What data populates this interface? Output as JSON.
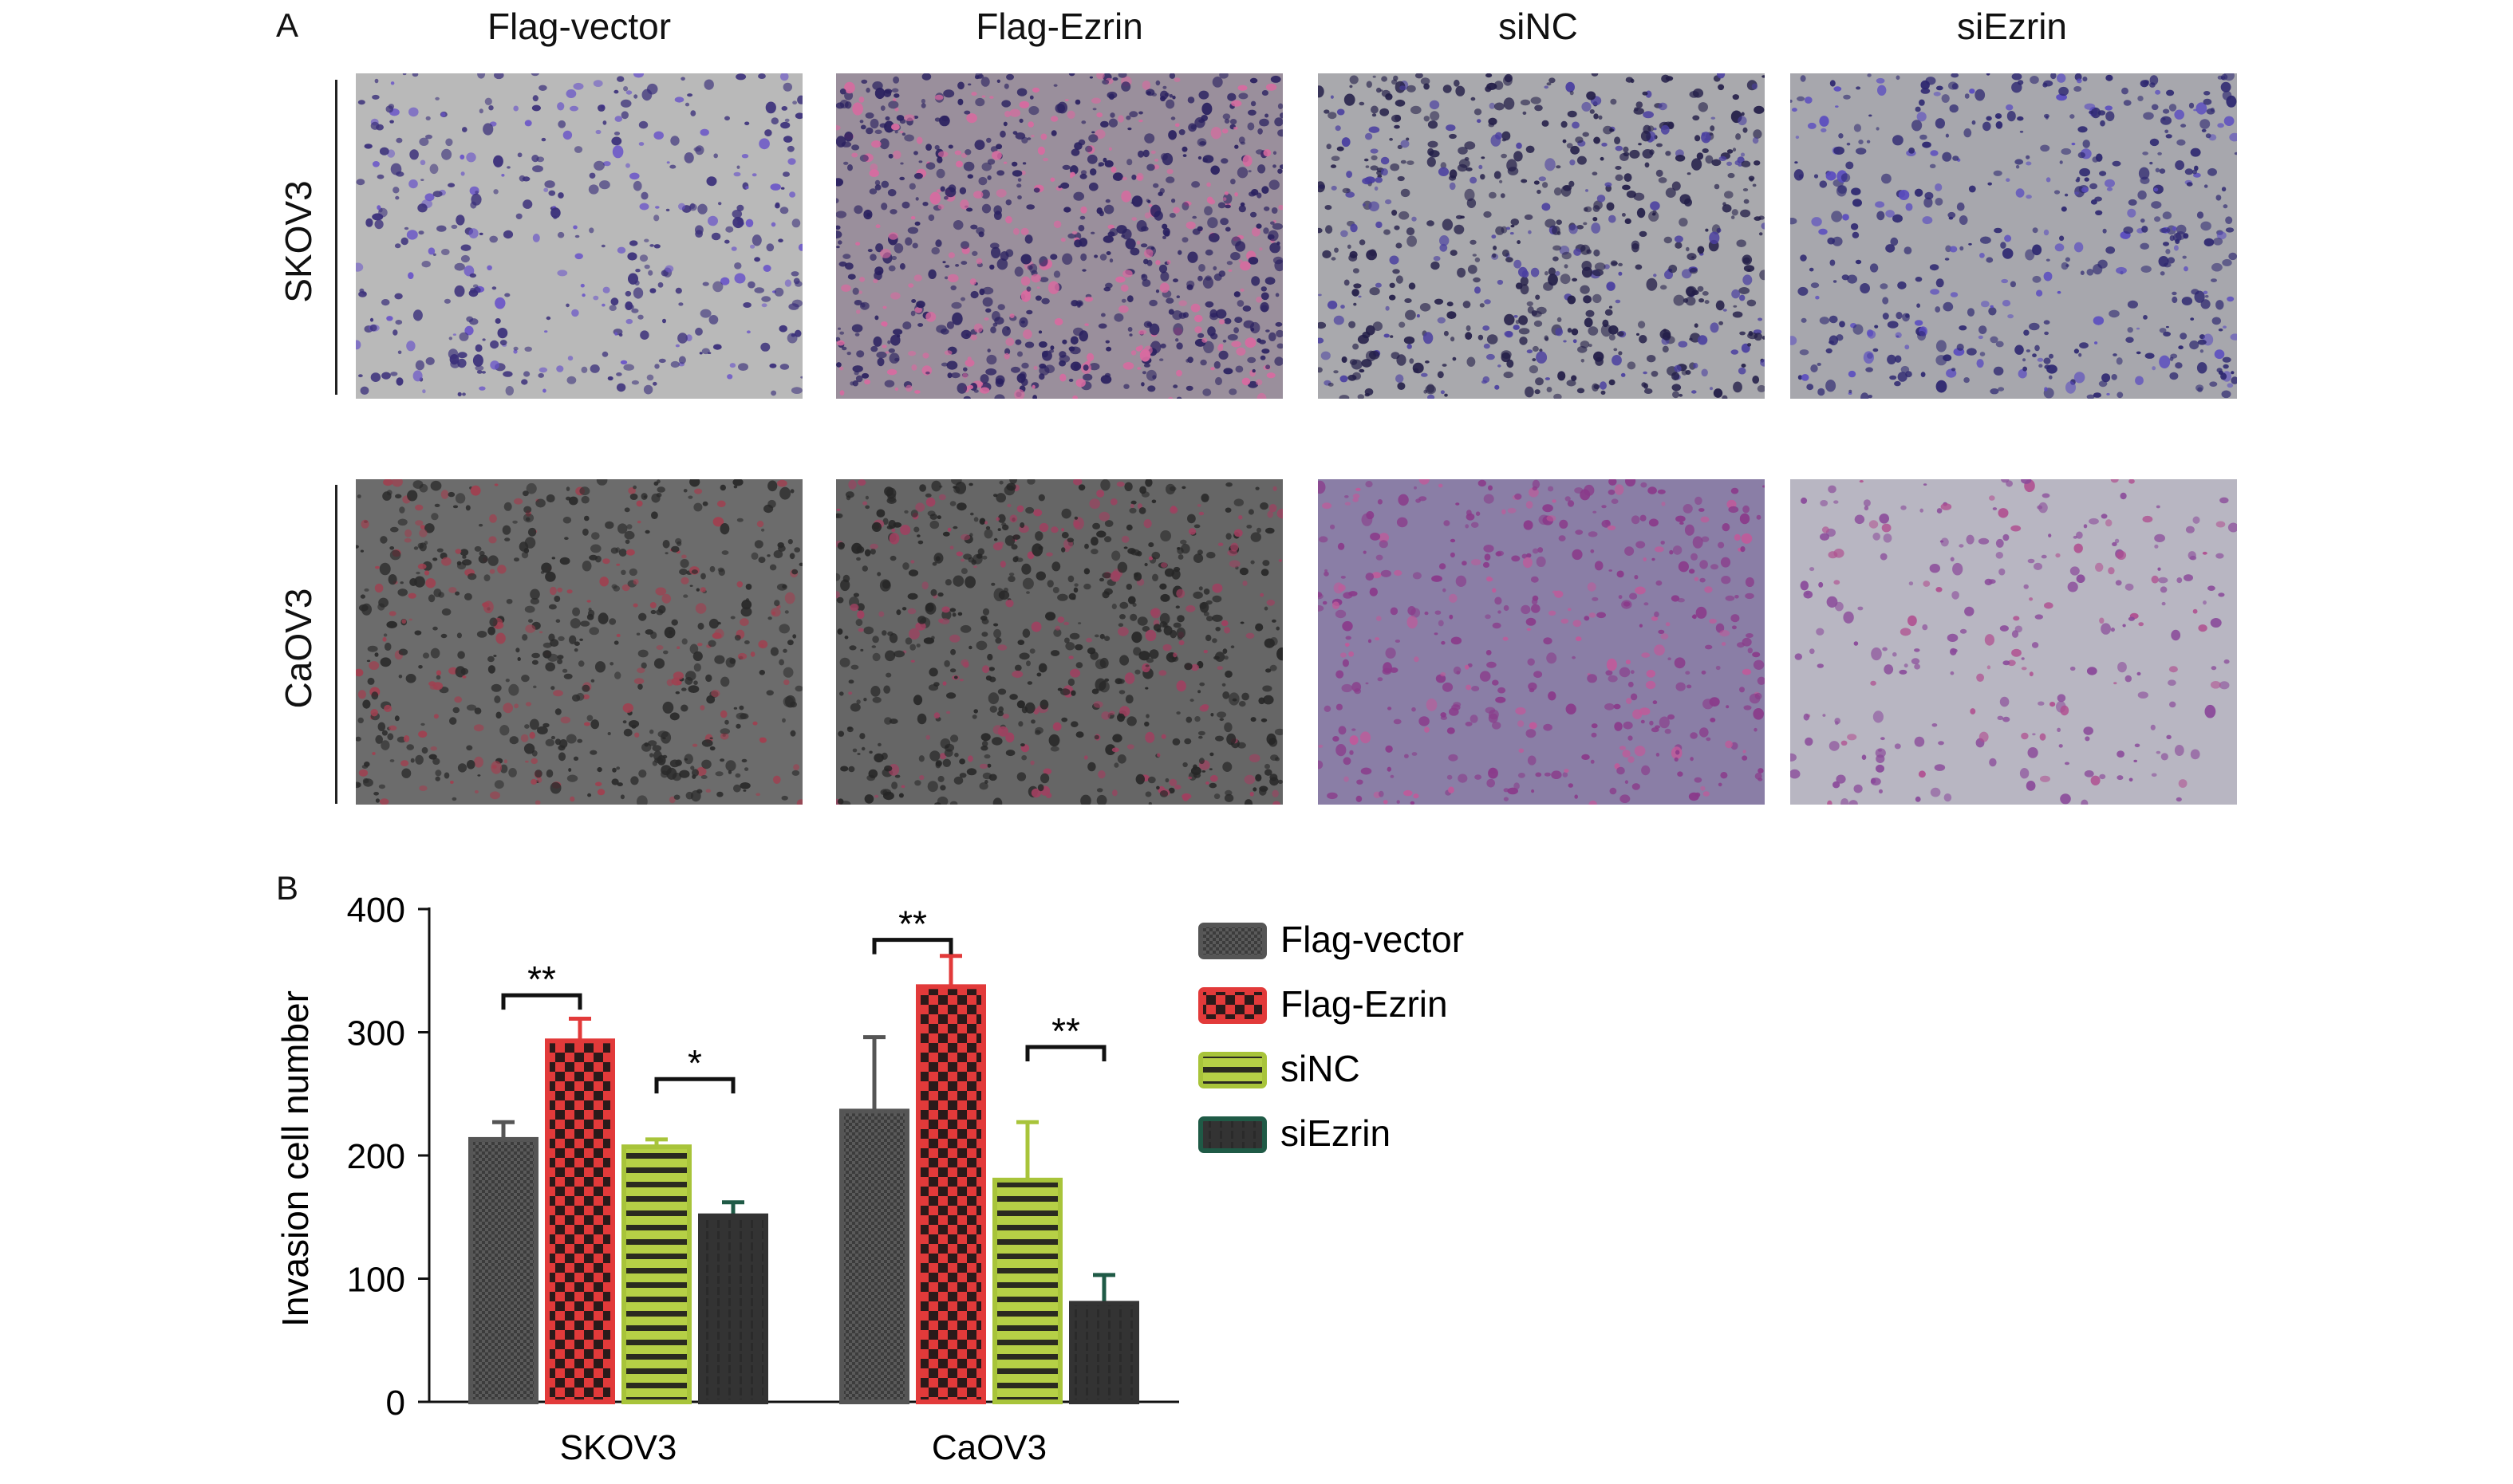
{
  "figure": {
    "panel_a_letter": "A",
    "panel_b_letter": "B",
    "columns": [
      "Flag-vector",
      "Flag-Ezrin",
      "siNC",
      "siEzrin"
    ],
    "rows": [
      "SKOV3",
      "CaOV3"
    ],
    "micrographs": [
      {
        "row": "SKOV3",
        "col": "Flag-vector",
        "bg": "#b9b9b9",
        "dots": "#3a2f7a",
        "density": 420,
        "accent": "#6a55c8"
      },
      {
        "row": "SKOV3",
        "col": "Flag-Ezrin",
        "bg": "#9a8f9c",
        "dots": "#2a2160",
        "density": 900,
        "accent": "#d86aa0"
      },
      {
        "row": "SKOV3",
        "col": "siNC",
        "bg": "#a9a9ad",
        "dots": "#231e48",
        "density": 700,
        "accent": "#4a3fa0"
      },
      {
        "row": "SKOV3",
        "col": "siEzrin",
        "bg": "#a7a7ad",
        "dots": "#2d2770",
        "density": 520,
        "accent": "#5a4cc0"
      },
      {
        "row": "CaOV3",
        "col": "Flag-vector",
        "bg": "#6c6c6c",
        "dots": "#2a2a2a",
        "density": 650,
        "accent": "#a04050"
      },
      {
        "row": "CaOV3",
        "col": "Flag-Ezrin",
        "bg": "#666666",
        "dots": "#262626",
        "density": 750,
        "accent": "#a04060"
      },
      {
        "row": "CaOV3",
        "col": "siNC",
        "bg": "#8a7ea6",
        "dots": "#8a3a8a",
        "density": 450,
        "accent": "#c05a9a"
      },
      {
        "row": "CaOV3",
        "col": "siEzrin",
        "bg": "#b8b6c2",
        "dots": "#8a4a9a",
        "density": 260,
        "accent": "#b05090"
      }
    ]
  },
  "chart_data": {
    "type": "bar",
    "title": "",
    "xlabel": "",
    "ylabel": "Invasion cell number",
    "ylim": [
      0,
      400
    ],
    "yticks": [
      0,
      100,
      200,
      300,
      400
    ],
    "categories": [
      "SKOV3",
      "CaOV3"
    ],
    "legend_position": "right",
    "series": [
      {
        "name": "Flag-vector",
        "values": [
          213,
          236
        ],
        "errors": [
          14,
          60
        ],
        "color": "#555555",
        "pattern": "grid",
        "err_color": "#555555"
      },
      {
        "name": "Flag-Ezrin",
        "values": [
          293,
          337
        ],
        "errors": [
          18,
          25
        ],
        "color": "#e23a3a",
        "pattern": "checker",
        "err_color": "#e23a3a"
      },
      {
        "name": "siNC",
        "values": [
          207,
          180
        ],
        "errors": [
          6,
          47
        ],
        "color": "#a8c43a",
        "pattern": "stripes",
        "err_color": "#a8c43a"
      },
      {
        "name": "siEzrin",
        "values": [
          151,
          80
        ],
        "errors": [
          11,
          23
        ],
        "color": "#333333",
        "pattern": "dash",
        "err_color": "#1f5a46"
      }
    ],
    "annotations": [
      {
        "category": "SKOV3",
        "from": "Flag-vector",
        "to": "Flag-Ezrin",
        "label": "**",
        "y": 330
      },
      {
        "category": "SKOV3",
        "from": "siNC",
        "to": "siEzrin",
        "label": "*",
        "y": 262
      },
      {
        "category": "CaOV3",
        "from": "Flag-vector",
        "to": "Flag-Ezrin",
        "label": "**",
        "y": 375
      },
      {
        "category": "CaOV3",
        "from": "siNC",
        "to": "siEzrin",
        "label": "**",
        "y": 288
      }
    ]
  }
}
